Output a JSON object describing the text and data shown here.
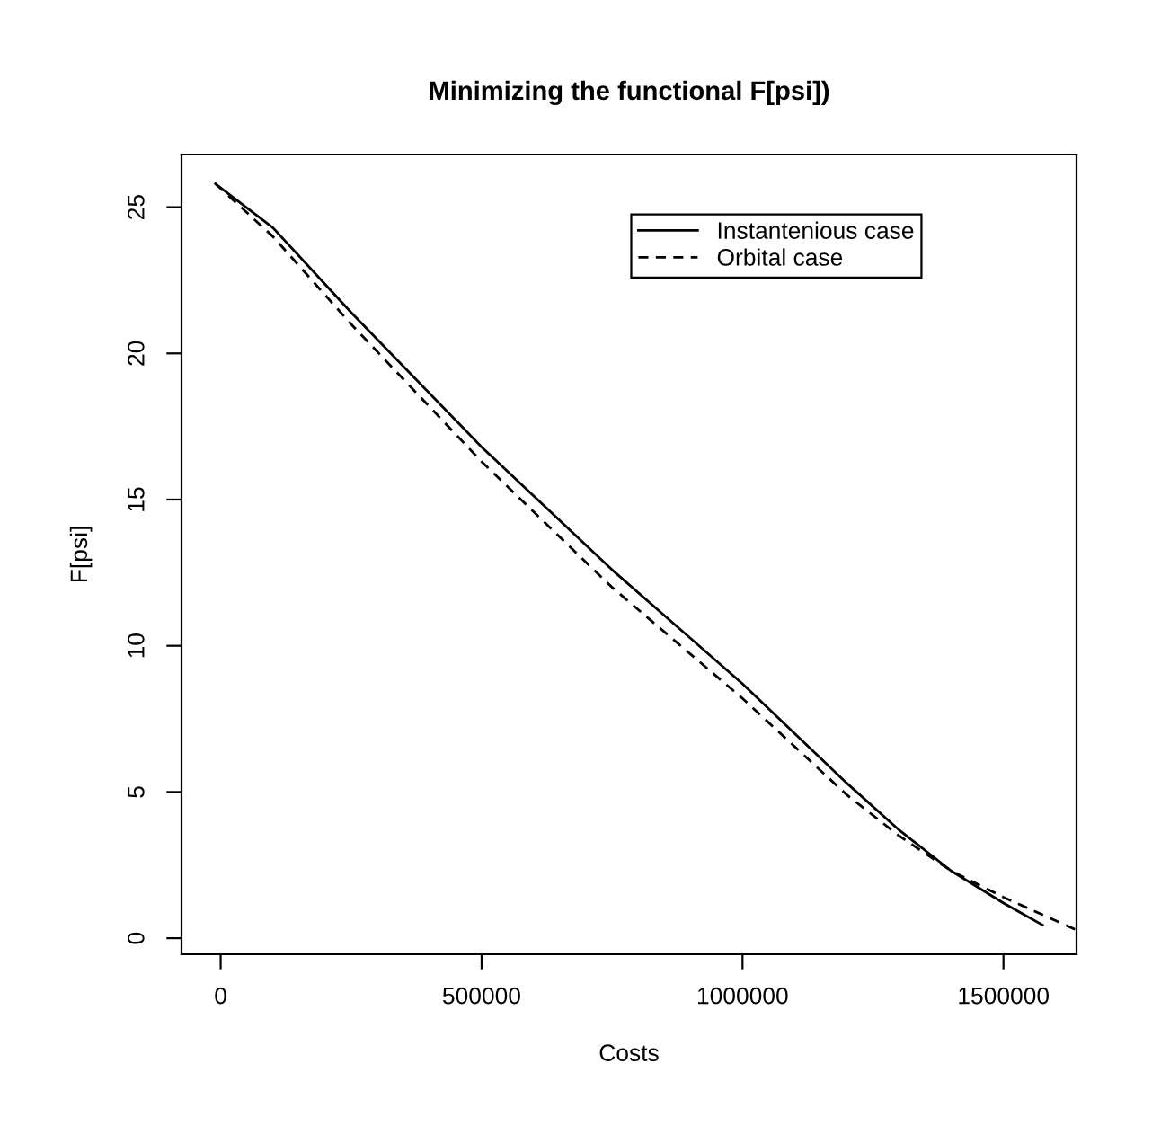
{
  "chart_data": {
    "type": "line",
    "title": "Minimizing the functional F[psi])",
    "xlabel": "Costs",
    "ylabel": "F[psi]",
    "xlim": [
      -75000,
      1640000
    ],
    "ylim": [
      -0.55,
      26.8
    ],
    "xticks": [
      0,
      500000,
      1000000,
      1500000
    ],
    "yticks": [
      0,
      5,
      10,
      15,
      20,
      25
    ],
    "grid": false,
    "legend": "top right",
    "marker": "none",
    "series": [
      {
        "name": "Instantenious case",
        "color": "#000000",
        "line_style": "solid",
        "x": [
          -10000,
          100000,
          250000,
          500000,
          750000,
          1000000,
          1200000,
          1300000,
          1400000,
          1500000,
          1575000
        ],
        "values": [
          25.8,
          24.3,
          21.4,
          16.8,
          12.6,
          8.7,
          5.3,
          3.7,
          2.3,
          1.2,
          0.45
        ]
      },
      {
        "name": "Orbital case",
        "color": "#000000",
        "line_style": "dashed",
        "x": [
          -10000,
          100000,
          250000,
          500000,
          750000,
          1000000,
          1200000,
          1300000,
          1400000,
          1500000,
          1640000
        ],
        "values": [
          25.8,
          24.0,
          21.0,
          16.3,
          12.0,
          8.2,
          4.9,
          3.5,
          2.3,
          1.4,
          0.28
        ]
      }
    ]
  }
}
